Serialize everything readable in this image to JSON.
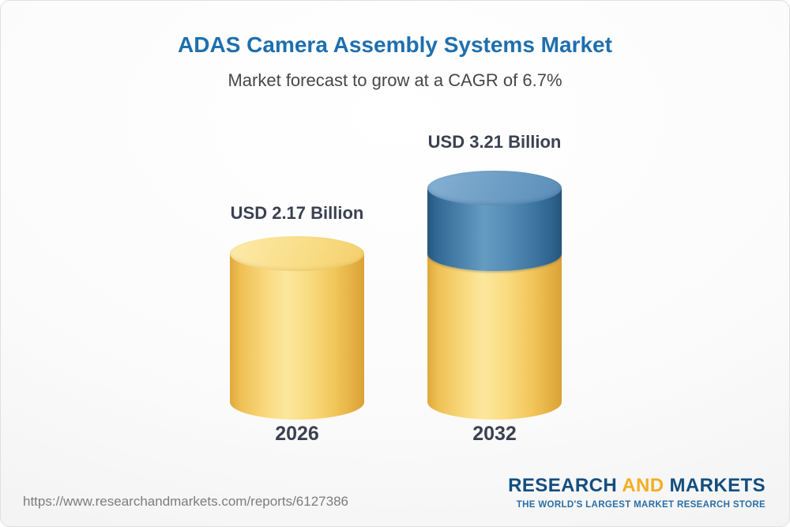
{
  "chart_data": {
    "type": "bar",
    "variant": "3d-cylinder",
    "title": "ADAS Camera Assembly Systems Market",
    "subtitle": "Market forecast to grow at a CAGR of 6.7%",
    "categories": [
      "2026",
      "2032"
    ],
    "values": [
      2.17,
      3.21
    ],
    "unit": "USD Billion",
    "value_labels": [
      "USD 2.17 Billion",
      "USD 3.21 Billion"
    ],
    "cagr_pct": 6.7,
    "ylim": [
      0,
      3.5
    ],
    "grid": false,
    "legend": false,
    "colors": {
      "bar_base": "#F6CE63",
      "bar_growth": "#4C84AF",
      "title_text": "#1E6FAE",
      "label_text": "#3A4150"
    }
  },
  "footer": {
    "source_url": "https://www.researchandmarkets.com/reports/6127386",
    "brand": {
      "word1": "RESEARCH",
      "word2": "AND",
      "word3": "MARKETS",
      "tagline": "THE WORLD'S LARGEST MARKET RESEARCH STORE",
      "navy": "#134E7F",
      "gold": "#F3AE24"
    }
  }
}
